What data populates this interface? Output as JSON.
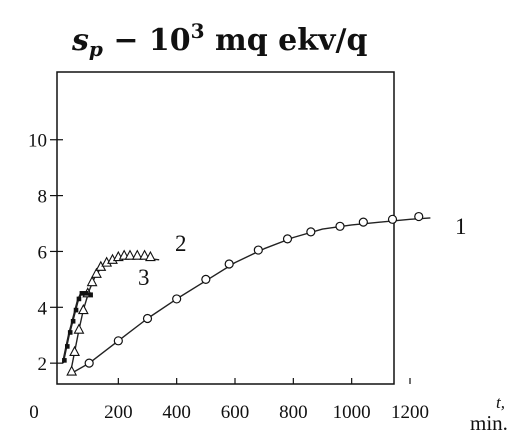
{
  "chart_data": {
    "type": "scatter",
    "title_base": "s",
    "title_sub": "p",
    "title_rest": " − 10",
    "title_sup": "3",
    "title_units": " mq ekv/q",
    "x_tick_labels": [
      "0",
      "200",
      "400",
      "600",
      "800",
      "1000",
      "1200"
    ],
    "y_tick_labels": [
      "2",
      "4",
      "6",
      "8",
      "10"
    ],
    "x_unit_top": "t,",
    "x_unit_bottom": "min.",
    "xlim": [
      0,
      1320
    ],
    "ylim": [
      1.2,
      12.2
    ],
    "x_ticks": [
      0,
      200,
      400,
      600,
      800,
      1000,
      1200
    ],
    "y_ticks": [
      2,
      4,
      6,
      8,
      10
    ],
    "series": [
      {
        "label": "1",
        "marker": "circle",
        "x": [
          100,
          200,
          300,
          400,
          500,
          580,
          680,
          780,
          860,
          960,
          1040,
          1140,
          1230
        ],
        "y": [
          2.0,
          2.8,
          3.6,
          4.3,
          5.0,
          5.55,
          6.05,
          6.45,
          6.7,
          6.9,
          7.05,
          7.15,
          7.25
        ],
        "curve_x": [
          50,
          100,
          200,
          300,
          400,
          500,
          600,
          700,
          800,
          900,
          1000,
          1100,
          1200,
          1270
        ],
        "curve_y": [
          1.7,
          2.0,
          2.8,
          3.6,
          4.3,
          4.95,
          5.6,
          6.1,
          6.5,
          6.8,
          6.95,
          7.05,
          7.15,
          7.2
        ]
      },
      {
        "label": "2",
        "marker": "triangle",
        "x": [
          40,
          50,
          65,
          80,
          95,
          110,
          125,
          140,
          160,
          180,
          200,
          220,
          240,
          265,
          290,
          310
        ],
        "y": [
          1.7,
          2.4,
          3.2,
          3.9,
          4.5,
          4.9,
          5.2,
          5.45,
          5.6,
          5.7,
          5.8,
          5.85,
          5.85,
          5.85,
          5.85,
          5.8
        ],
        "curve_x": [
          35,
          50,
          65,
          80,
          100,
          120,
          140,
          160,
          190,
          220,
          260,
          300,
          340
        ],
        "curve_y": [
          1.6,
          2.4,
          3.2,
          3.9,
          4.6,
          5.1,
          5.4,
          5.55,
          5.7,
          5.75,
          5.75,
          5.75,
          5.7
        ]
      },
      {
        "label": "3",
        "marker": "square",
        "x": [
          15,
          25,
          35,
          45,
          55,
          65,
          75,
          90,
          105
        ],
        "y": [
          2.1,
          2.6,
          3.1,
          3.5,
          3.9,
          4.3,
          4.5,
          4.5,
          4.45
        ],
        "curve_x": [
          10,
          20,
          30,
          40,
          50,
          60,
          70,
          80,
          95,
          110
        ],
        "curve_y": [
          2.0,
          2.5,
          3.0,
          3.4,
          3.8,
          4.2,
          4.45,
          4.5,
          4.5,
          4.45
        ]
      }
    ],
    "grid": false,
    "legend": "none"
  }
}
